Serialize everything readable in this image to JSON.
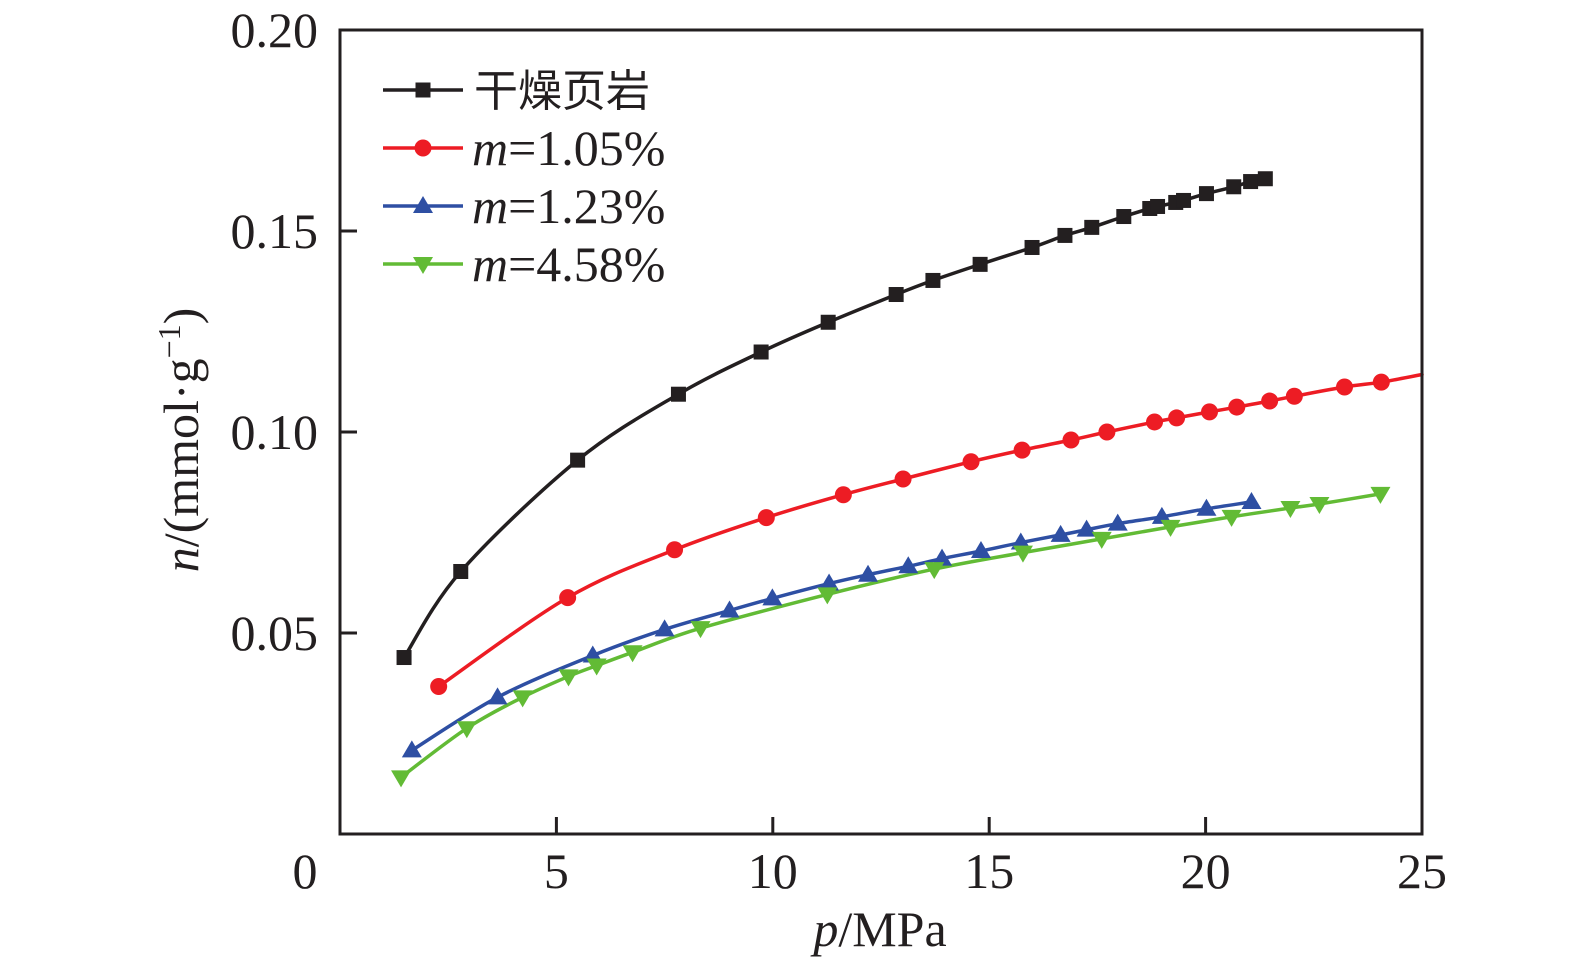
{
  "chart_data": {
    "type": "line",
    "title": "",
    "xlabel": {
      "var": "p",
      "unit": "/MPa"
    },
    "ylabel": {
      "var": "n",
      "unit": "/(mmol·g",
      "sup": "−1",
      "close": ")"
    },
    "xlim": [
      0,
      25
    ],
    "ylim": [
      0,
      0.2
    ],
    "xticks": [
      5,
      10,
      15,
      20,
      25
    ],
    "xtick_labels": [
      "5",
      "10",
      "15",
      "20",
      "25"
    ],
    "yticks": [
      0.05,
      0.1,
      0.15,
      0.2
    ],
    "ytick_labels": [
      "0.05",
      "0.10",
      "0.15",
      "0.20"
    ],
    "origin_label": "0",
    "grid": false,
    "legend_position": "top-left",
    "series": [
      {
        "name": "干燥页岩",
        "legend_prefix": "",
        "legend_value": "干燥页岩",
        "color": "#231f20",
        "marker": "square",
        "x": [
          1.48,
          2.79,
          5.49,
          7.82,
          9.73,
          11.28,
          12.85,
          13.7,
          14.79,
          15.99,
          16.75,
          17.37,
          18.11,
          18.71,
          18.89,
          19.31,
          19.49,
          20.02,
          20.65,
          21.04,
          21.38
        ],
        "y": [
          0.0439,
          0.0653,
          0.093,
          0.1094,
          0.1199,
          0.1273,
          0.1342,
          0.1377,
          0.1417,
          0.1459,
          0.1489,
          0.1509,
          0.1536,
          0.1556,
          0.1561,
          0.1571,
          0.1576,
          0.1593,
          0.161,
          0.1623,
          0.163
        ],
        "fit_end": null
      },
      {
        "name": "m=1.05%",
        "legend_prefix": "m",
        "legend_value": "=1.05%",
        "color": "#ed1c24",
        "marker": "circle",
        "x": [
          2.28,
          5.26,
          7.73,
          9.85,
          11.63,
          13.01,
          14.58,
          15.76,
          16.89,
          17.72,
          18.82,
          19.33,
          20.09,
          20.72,
          21.48,
          22.05,
          23.21,
          24.06
        ],
        "y": [
          0.0367,
          0.0588,
          0.0707,
          0.0787,
          0.0844,
          0.0883,
          0.0926,
          0.0955,
          0.098,
          0.1,
          0.1025,
          0.1035,
          0.105,
          0.1062,
          0.1077,
          0.1089,
          0.1112,
          0.1124
        ],
        "fit_end": [
          25.0,
          0.1143
        ]
      },
      {
        "name": "m=1.23%",
        "legend_prefix": "m",
        "legend_value": "=1.23%",
        "color": "#2e4fa3",
        "marker": "triangle-up",
        "x": [
          1.66,
          3.64,
          5.84,
          7.5,
          9.0,
          9.99,
          11.3,
          12.2,
          13.13,
          13.91,
          14.81,
          15.73,
          16.65,
          17.25,
          17.97,
          18.99,
          20.02,
          21.06
        ],
        "y": [
          0.0208,
          0.034,
          0.0444,
          0.0509,
          0.0556,
          0.0586,
          0.0623,
          0.0645,
          0.0666,
          0.0685,
          0.0704,
          0.0725,
          0.0744,
          0.0757,
          0.0772,
          0.0789,
          0.0809,
          0.0826
        ],
        "fit_end": null
      },
      {
        "name": "m=4.58%",
        "legend_prefix": "m",
        "legend_value": "=4.58%",
        "color": "#62bb35",
        "marker": "triangle-down",
        "x": [
          1.41,
          2.93,
          4.22,
          5.28,
          5.93,
          6.76,
          8.33,
          11.26,
          13.73,
          15.78,
          17.6,
          19.19,
          20.6,
          21.96,
          22.63,
          24.04
        ],
        "y": [
          0.0141,
          0.0263,
          0.034,
          0.0392,
          0.0419,
          0.0452,
          0.0512,
          0.0596,
          0.0659,
          0.07,
          0.0734,
          0.0764,
          0.0789,
          0.0811,
          0.0821,
          0.0846
        ],
        "fit_end": null
      }
    ]
  }
}
